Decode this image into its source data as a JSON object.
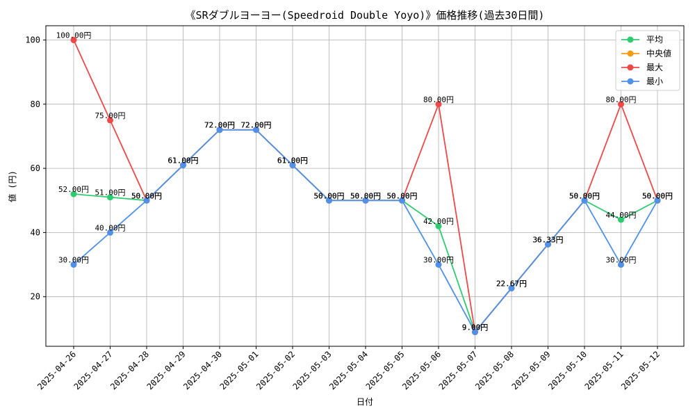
{
  "chart_data": {
    "type": "line",
    "title": "《SRダブルヨーヨー(Speedroid Double Yoyo)》価格推移(過去30日間)",
    "xlabel": "日付",
    "ylabel": "値 (円)",
    "ylim": [
      4.55,
      104.45
    ],
    "yticks": [
      20,
      40,
      60,
      80,
      100
    ],
    "grid": true,
    "legend_position": "top-right",
    "value_suffix": "円",
    "categories": [
      "2025-04-26",
      "2025-04-27",
      "2025-04-28",
      "2025-04-29",
      "2025-04-30",
      "2025-05-01",
      "2025-05-02",
      "2025-05-03",
      "2025-05-04",
      "2025-05-05",
      "2025-05-06",
      "2025-05-07",
      "2025-05-08",
      "2025-05-09",
      "2025-05-10",
      "2025-05-11",
      "2025-05-12"
    ],
    "series": [
      {
        "name": "平均",
        "color": "#2ecc71",
        "values": [
          52,
          51,
          50,
          61,
          72,
          72,
          61,
          50,
          50,
          50,
          42,
          9,
          22.67,
          36.33,
          50,
          44,
          50
        ]
      },
      {
        "name": "中央値",
        "color": "#f39c12",
        "values": [
          null,
          null,
          null,
          null,
          null,
          null,
          null,
          null,
          null,
          null,
          null,
          null,
          null,
          null,
          null,
          null,
          null
        ]
      },
      {
        "name": "最大",
        "color": "#f04848",
        "values": [
          100,
          75,
          50,
          61,
          72,
          72,
          61,
          50,
          50,
          50,
          80,
          9,
          22.67,
          36.33,
          50,
          80,
          50
        ]
      },
      {
        "name": "最小",
        "color": "#5090e8",
        "values": [
          30,
          40,
          50,
          61,
          72,
          72,
          61,
          50,
          50,
          50,
          30,
          9,
          22.67,
          36.33,
          50,
          30,
          50
        ]
      }
    ]
  }
}
